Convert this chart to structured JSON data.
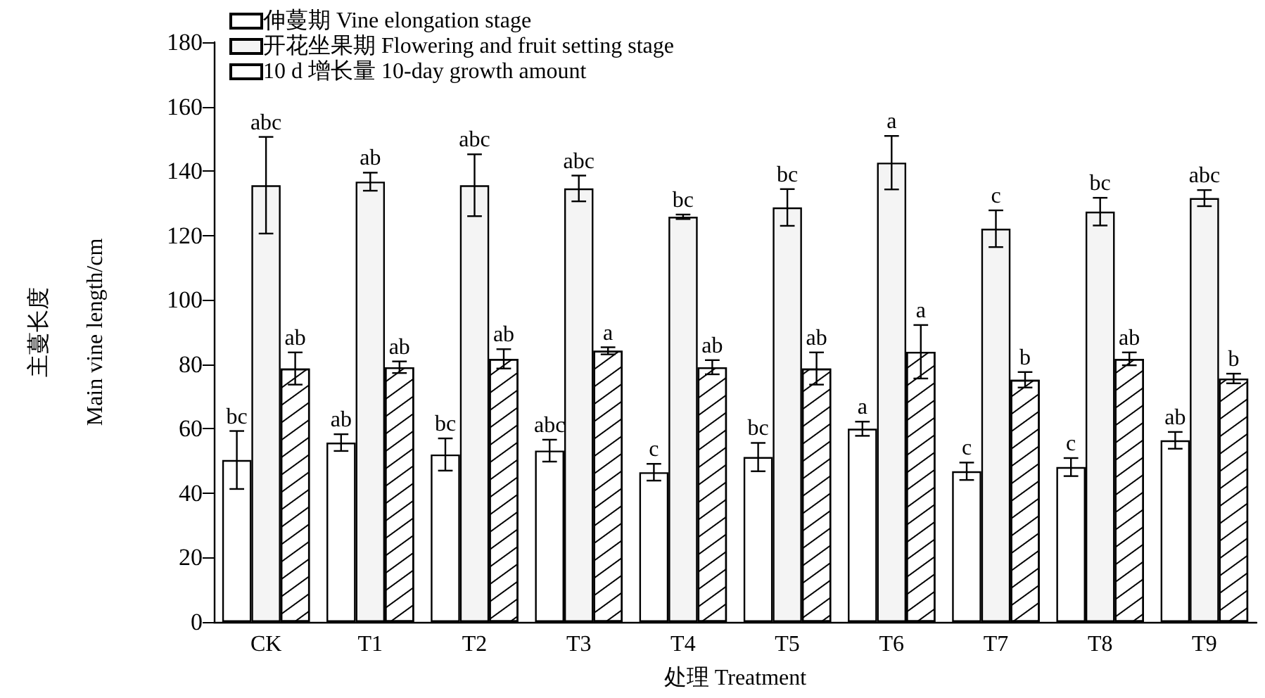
{
  "chart_data": {
    "type": "bar",
    "xlabel": "处理 Treatment",
    "ylabel": "主蔓长度\nMain vine length/cm",
    "categories": [
      "CK",
      "T1",
      "T2",
      "T3",
      "T4",
      "T5",
      "T6",
      "T7",
      "T8",
      "T9"
    ],
    "series": [
      {
        "name": "伸蔓期 Vine elongation stage",
        "color": "#ffffff",
        "values": [
          50.3,
          55.7,
          52,
          53.2,
          46.5,
          51.2,
          60,
          46.8,
          48.1,
          56.4
        ],
        "errors": [
          9,
          2.6,
          5,
          3.4,
          2.6,
          4.4,
          2.2,
          2.7,
          2.8,
          2.6
        ],
        "value_labels": [
          "bc",
          "ab",
          "bc",
          "abc",
          "c",
          "bc",
          "a",
          "c",
          "c",
          "ab"
        ]
      },
      {
        "name": "开花坐果期 Flowering and fruit setting stage",
        "color": "#f4f4f4",
        "values": [
          135.6,
          136.7,
          135.6,
          134.6,
          125.8,
          128.7,
          142.6,
          122.1,
          127.4,
          131.6
        ],
        "errors": [
          15,
          2.8,
          9.6,
          4,
          0.7,
          5.7,
          8.3,
          5.7,
          4.3,
          2.5
        ],
        "value_labels": [
          "abc",
          "ab",
          "abc",
          "abc",
          "bc",
          "bc",
          "a",
          "c",
          "bc",
          "abc"
        ]
      },
      {
        "name": "10 d 增长量 10-day growth amount",
        "color": "#ffffff",
        "values": [
          78.7,
          79.1,
          81.7,
          84.2,
          79.1,
          78.7,
          83.9,
          75.2,
          81.7,
          75.6
        ],
        "errors": [
          5,
          1.8,
          3,
          1.1,
          2.2,
          5,
          8.3,
          2.4,
          2,
          1.5
        ],
        "value_labels": [
          "ab",
          "ab",
          "ab",
          "a",
          "ab",
          "ab",
          "a",
          "b",
          "ab",
          "b"
        ]
      }
    ],
    "ylim": [
      0,
      180
    ],
    "yticks": [
      0,
      20,
      40,
      60,
      80,
      100,
      120,
      140,
      160,
      180
    ],
    "grid": false,
    "legend": "top left"
  }
}
